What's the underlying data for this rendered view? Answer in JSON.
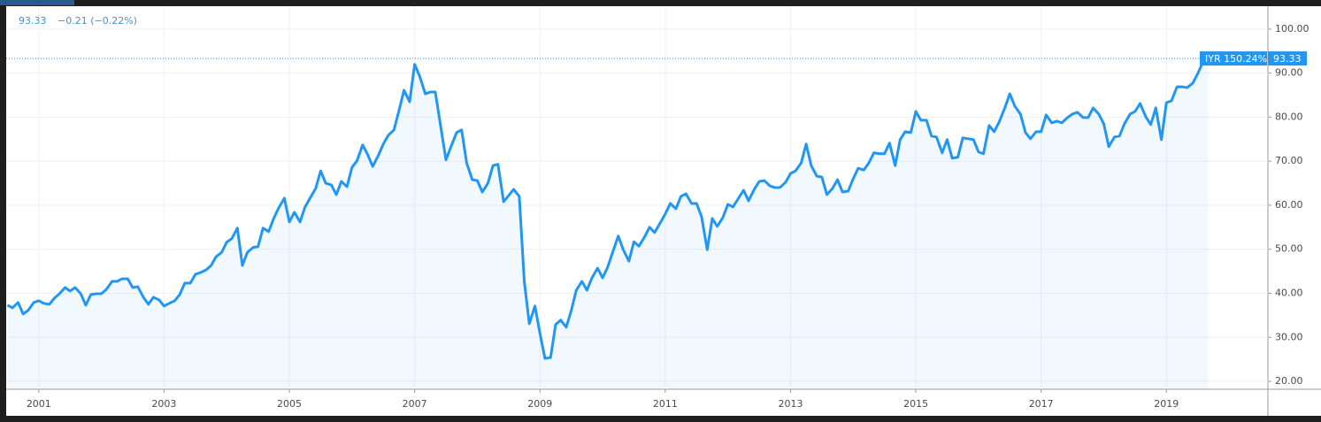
{
  "chart_data": {
    "type": "line",
    "price_label": "93.33",
    "change_label": "−0.21 (−0.22%)",
    "change_pct_label": "150.24%",
    "x": [
      2000.5,
      2000.58,
      2000.67,
      2000.75,
      2000.83,
      2000.92,
      2001.0,
      2001.08,
      2001.17,
      2001.25,
      2001.33,
      2001.42,
      2001.5,
      2001.58,
      2001.67,
      2001.75,
      2001.83,
      2001.92,
      2002.0,
      2002.08,
      2002.17,
      2002.25,
      2002.33,
      2002.42,
      2002.5,
      2002.58,
      2002.67,
      2002.75,
      2002.83,
      2002.92,
      2003.0,
      2003.08,
      2003.17,
      2003.25,
      2003.33,
      2003.42,
      2003.5,
      2003.58,
      2003.67,
      2003.75,
      2003.83,
      2003.92,
      2004.0,
      2004.08,
      2004.17,
      2004.25,
      2004.33,
      2004.42,
      2004.5,
      2004.58,
      2004.67,
      2004.75,
      2004.83,
      2004.92,
      2005.0,
      2005.08,
      2005.17,
      2005.25,
      2005.33,
      2005.42,
      2005.5,
      2005.58,
      2005.67,
      2005.75,
      2005.83,
      2005.92,
      2006.0,
      2006.08,
      2006.17,
      2006.25,
      2006.33,
      2006.42,
      2006.5,
      2006.58,
      2006.67,
      2006.75,
      2006.83,
      2006.92,
      2007.0,
      2007.08,
      2007.17,
      2007.25,
      2007.33,
      2007.42,
      2007.5,
      2007.58,
      2007.67,
      2007.75,
      2007.83,
      2007.92,
      2008.0,
      2008.08,
      2008.17,
      2008.25,
      2008.33,
      2008.42,
      2008.5,
      2008.58,
      2008.67,
      2008.75,
      2008.83,
      2008.92,
      2009.0,
      2009.08,
      2009.17,
      2009.25,
      2009.33,
      2009.42,
      2009.5,
      2009.58,
      2009.67,
      2009.75,
      2009.83,
      2009.92,
      2010.0,
      2010.08,
      2010.17,
      2010.25,
      2010.33,
      2010.42,
      2010.5,
      2010.58,
      2010.67,
      2010.75,
      2010.83,
      2010.92,
      2011.0,
      2011.08,
      2011.17,
      2011.25,
      2011.33,
      2011.42,
      2011.5,
      2011.58,
      2011.67,
      2011.75,
      2011.83,
      2011.92,
      2012.0,
      2012.08,
      2012.17,
      2012.25,
      2012.33,
      2012.42,
      2012.5,
      2012.58,
      2012.67,
      2012.75,
      2012.83,
      2012.92,
      2013.0,
      2013.08,
      2013.17,
      2013.25,
      2013.33,
      2013.42,
      2013.5,
      2013.58,
      2013.67,
      2013.75,
      2013.83,
      2013.92,
      2014.0,
      2014.08,
      2014.17,
      2014.25,
      2014.33,
      2014.42,
      2014.5,
      2014.58,
      2014.67,
      2014.75,
      2014.83,
      2014.92,
      2015.0,
      2015.08,
      2015.17,
      2015.25,
      2015.33,
      2015.42,
      2015.5,
      2015.58,
      2015.67,
      2015.75,
      2015.83,
      2015.92,
      2016.0,
      2016.08,
      2016.17,
      2016.25,
      2016.33,
      2016.42,
      2016.5,
      2016.58,
      2016.67,
      2016.75,
      2016.83,
      2016.92,
      2017.0,
      2017.08,
      2017.17,
      2017.25,
      2017.33,
      2017.42,
      2017.5,
      2017.58,
      2017.67,
      2017.75,
      2017.83,
      2017.92,
      2018.0,
      2018.08,
      2018.17,
      2018.25,
      2018.33,
      2018.42,
      2018.5,
      2018.58,
      2018.67,
      2018.75,
      2018.83,
      2018.92,
      2019.0,
      2019.08,
      2019.17,
      2019.25,
      2019.33,
      2019.42,
      2019.5,
      2019.58,
      2019.67
    ],
    "series": [
      {
        "name": "IYR",
        "color": "#2196f3",
        "values": [
          37.3,
          36.7,
          37.9,
          35.3,
          36.1,
          37.9,
          38.3,
          37.7,
          37.5,
          38.9,
          39.9,
          41.3,
          40.5,
          41.3,
          39.9,
          37.3,
          39.7,
          39.9,
          39.9,
          40.9,
          42.7,
          42.7,
          43.3,
          43.3,
          41.3,
          41.5,
          39.1,
          37.5,
          39.1,
          38.5,
          37.1,
          37.7,
          38.3,
          39.7,
          42.3,
          42.3,
          44.3,
          44.7,
          45.3,
          46.3,
          48.3,
          49.3,
          51.6,
          52.4,
          54.8,
          46.3,
          49.3,
          50.4,
          50.6,
          54.8,
          54.0,
          57.0,
          59.4,
          61.6,
          56.2,
          58.4,
          56.2,
          59.6,
          61.6,
          63.8,
          67.8,
          65.0,
          64.6,
          62.4,
          65.4,
          64.2,
          68.6,
          70.1,
          73.7,
          71.5,
          68.8,
          71.3,
          73.9,
          75.9,
          77.1,
          81.5,
          86.1,
          83.5,
          92.0,
          89.3,
          85.3,
          85.7,
          85.7,
          77.5,
          70.3,
          73.3,
          76.5,
          77.1,
          69.6,
          65.8,
          65.6,
          63.0,
          65.0,
          69.0,
          69.3,
          60.8,
          62.2,
          63.6,
          62.0,
          42.7,
          33.1,
          37.1,
          30.9,
          25.2,
          25.4,
          32.9,
          33.9,
          32.3,
          36.1,
          40.7,
          42.7,
          40.7,
          43.5,
          45.7,
          43.5,
          45.9,
          49.7,
          53.0,
          49.9,
          47.3,
          51.7,
          50.7,
          52.8,
          55.0,
          53.8,
          56.0,
          58.0,
          60.4,
          59.2,
          62.0,
          62.6,
          60.4,
          60.4,
          57.4,
          49.9,
          57.0,
          55.2,
          57.2,
          60.2,
          59.6,
          61.6,
          63.4,
          61.0,
          63.6,
          65.4,
          65.6,
          64.4,
          64.0,
          64.0,
          65.2,
          67.2,
          67.8,
          69.6,
          73.9,
          69.0,
          66.6,
          66.4,
          62.4,
          63.8,
          65.8,
          63.0,
          63.2,
          66.0,
          68.4,
          68.0,
          69.6,
          71.9,
          71.7,
          71.7,
          74.1,
          69.0,
          74.9,
          76.7,
          76.5,
          81.3,
          79.3,
          79.3,
          75.7,
          75.5,
          71.9,
          74.9,
          70.7,
          70.9,
          75.3,
          75.1,
          74.9,
          72.1,
          71.7,
          78.1,
          76.7,
          78.9,
          82.1,
          85.3,
          82.5,
          80.7,
          76.5,
          75.1,
          76.7,
          76.7,
          80.5,
          78.7,
          79.1,
          78.7,
          79.9,
          80.7,
          81.1,
          79.9,
          79.9,
          82.1,
          80.7,
          78.5,
          73.3,
          75.5,
          75.7,
          78.5,
          80.7,
          81.3,
          83.1,
          80.1,
          78.3,
          82.1,
          74.9,
          83.3,
          83.7,
          86.9,
          86.9,
          86.7,
          87.7,
          89.9,
          92.4,
          93.33
        ]
      }
    ],
    "xlim": [
      2000.48,
      2020.62
    ],
    "xticks": [
      2001,
      2003,
      2005,
      2007,
      2009,
      2011,
      2013,
      2015,
      2017,
      2019
    ],
    "ylim": [
      18.2,
      105.2
    ],
    "yticks": [
      {
        "value": 20,
        "label": "20.00"
      },
      {
        "value": 30,
        "label": "30.00"
      },
      {
        "value": 40,
        "label": "40.00"
      },
      {
        "value": 50,
        "label": "50.00"
      },
      {
        "value": 60,
        "label": "60.00"
      },
      {
        "value": 70,
        "label": "70.00"
      },
      {
        "value": 80,
        "label": "80.00"
      },
      {
        "value": 90,
        "label": "90.00"
      },
      {
        "value": 100,
        "label": "100.00"
      }
    ],
    "grid": true
  }
}
